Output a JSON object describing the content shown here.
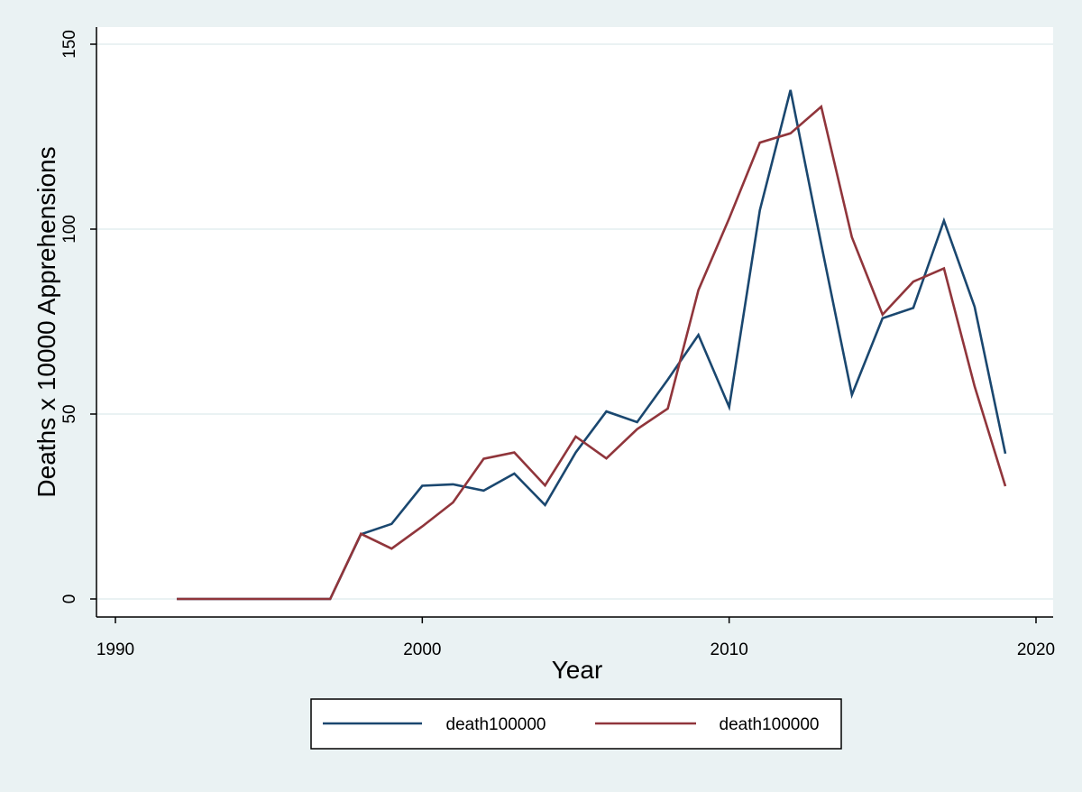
{
  "chart_data": {
    "type": "line",
    "title": "",
    "xlabel": "Year",
    "ylabel": "Deaths x 10000 Apprehensions",
    "xlim": [
      1989,
      2021
    ],
    "ylim": [
      -5,
      155
    ],
    "xticks": [
      1990,
      2000,
      2010,
      2020
    ],
    "yticks": [
      0,
      50,
      100,
      150
    ],
    "grid": true,
    "legend_position": "bottom",
    "series": [
      {
        "name": "death100000",
        "color": "#1a476f",
        "x": [
          1992,
          1993,
          1994,
          1995,
          1996,
          1997,
          1998,
          1999,
          2000,
          2001,
          2002,
          2003,
          2004,
          2005,
          2006,
          2007,
          2008,
          2009,
          2010,
          2011,
          2012,
          2013,
          2014,
          2015,
          2016,
          2017,
          2018,
          2019
        ],
        "values": [
          0,
          0,
          0,
          0,
          0,
          0,
          17.5,
          20.3,
          30.6,
          31.0,
          29.3,
          33.9,
          25.4,
          39.6,
          50.7,
          47.8,
          59.3,
          71.4,
          51.9,
          105.1,
          137.6,
          95.9,
          55.2,
          75.9,
          78.7,
          102.3,
          79.0,
          39.3
        ]
      },
      {
        "name": "death100000",
        "color": "#90353b",
        "x": [
          1992,
          1993,
          1994,
          1995,
          1996,
          1997,
          1998,
          1999,
          2000,
          2001,
          2002,
          2003,
          2004,
          2005,
          2006,
          2007,
          2008,
          2009,
          2010,
          2011,
          2012,
          2013,
          2014,
          2015,
          2016,
          2017,
          2018,
          2019
        ],
        "values": [
          0,
          0,
          0,
          0,
          0,
          0,
          17.6,
          13.6,
          19.6,
          26.1,
          37.9,
          39.6,
          30.7,
          43.9,
          38.0,
          45.9,
          51.5,
          83.5,
          102.9,
          123.4,
          125.9,
          133.1,
          97.8,
          76.9,
          85.8,
          89.4,
          57.5,
          30.5
        ]
      }
    ]
  }
}
